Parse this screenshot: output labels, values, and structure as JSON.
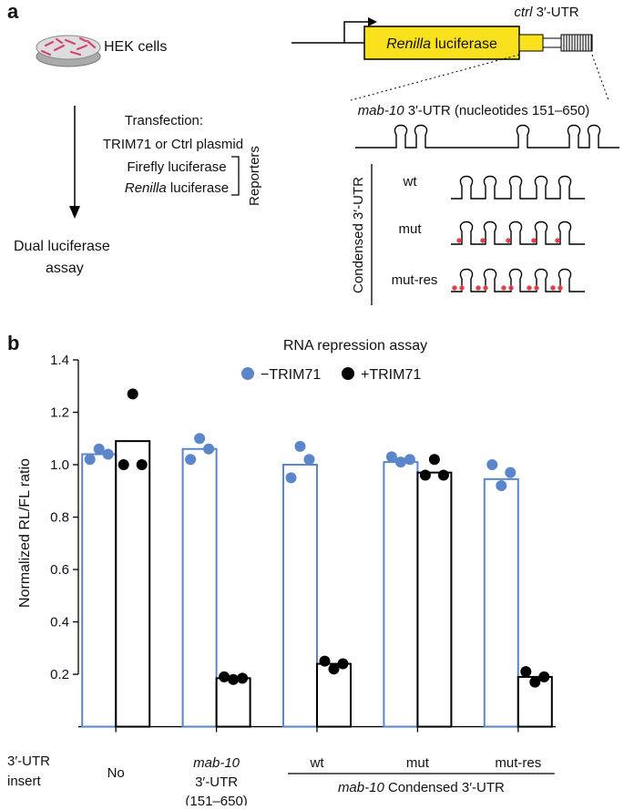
{
  "panel_a": {
    "label": "a",
    "cells": "HEK cells",
    "steps": {
      "title": "Transfection:",
      "plasmid": "TRIM71 or Ctrl plasmid",
      "firefly": "Firefly luciferase",
      "renilla": {
        "italic": "Renilla",
        "text": "luciferase"
      },
      "reporters": "Reporters"
    },
    "readout": [
      "Dual luciferase",
      "assay"
    ],
    "construct": {
      "gene": {
        "italic": "Renilla",
        "text": "luciferase"
      },
      "ctrl": {
        "italic": "ctrl",
        "text": "3′-UTR"
      },
      "utr": {
        "italic": "mab-10",
        "text": "3′-UTR (nucleotides 151–650)"
      }
    },
    "condensed": {
      "label": "Condensed 3′-UTR",
      "rows": [
        "wt",
        "mut",
        "mut-res"
      ]
    }
  },
  "chart_data": {
    "type": "bar",
    "panel_label": "b",
    "title": "RNA repression assay",
    "ylabel": "Normalized RL/FL ratio",
    "xlabel": [
      "3′-UTR",
      "insert"
    ],
    "categories": [
      "No",
      [
        "mab-10",
        "3′-UTR",
        "(151–650)"
      ],
      "wt",
      "mut",
      "mut-res"
    ],
    "group_label": {
      "italic": "mab-10",
      "text": "Condensed 3′-UTR"
    },
    "series": [
      {
        "name": "−TRIM71",
        "color": "#5b86c9",
        "values": [
          1.04,
          1.06,
          1.0,
          1.01,
          0.945
        ],
        "points": [
          [
            1.02,
            1.06,
            1.04
          ],
          [
            1.02,
            1.1,
            1.06
          ],
          [
            0.95,
            1.07,
            1.02
          ],
          [
            1.03,
            1.01,
            1.02
          ],
          [
            1.0,
            0.92,
            0.97
          ]
        ]
      },
      {
        "name": "+TRIM71",
        "color": "#000000",
        "values": [
          1.09,
          0.185,
          0.24,
          0.97,
          0.19
        ],
        "points": [
          [
            1.0,
            1.27,
            1.0
          ],
          [
            0.19,
            0.18,
            0.185
          ],
          [
            0.25,
            0.22,
            0.24
          ],
          [
            0.96,
            1.02,
            0.96
          ],
          [
            0.21,
            0.17,
            0.19
          ]
        ]
      }
    ],
    "ylim": [
      -0.085,
      1.4
    ],
    "yticks": [
      0.2,
      0.4,
      0.6,
      0.8,
      {
        "value": 1,
        "label": "1.0"
      },
      1.2,
      1.4
    ]
  }
}
